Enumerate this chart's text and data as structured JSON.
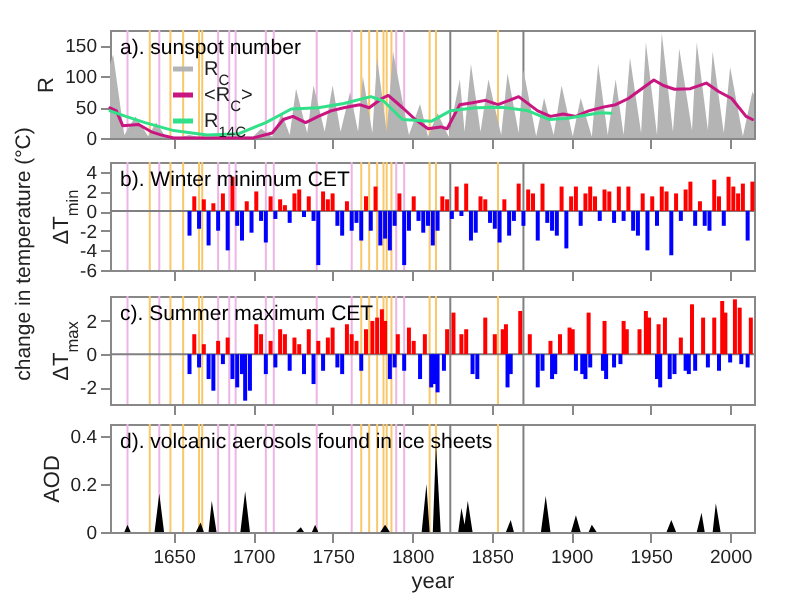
{
  "chart_data": [
    {
      "type": "area",
      "title": "a). sunspot number",
      "ylabel": "R",
      "xlim": [
        1610,
        2015
      ],
      "xticks": [
        1650,
        1700,
        1750,
        1800,
        1850,
        1900,
        1950,
        2000
      ],
      "ylim": [
        0,
        175
      ],
      "yticks": [
        0,
        50,
        100,
        150
      ],
      "tick_labels": "y",
      "legend": "left",
      "series": [
        {
          "name": "R$_{C}$",
          "type": "area",
          "color": "#b4b4b4",
          "x": [
            1610,
            1612,
            1619,
            1626,
            1634,
            1639,
            1645,
            1655,
            1660,
            1665,
            1675,
            1690,
            1700,
            1705,
            1712,
            1718,
            1723,
            1727,
            1734,
            1738,
            1745,
            1750,
            1755,
            1761,
            1766,
            1769,
            1775,
            1778,
            1784,
            1788,
            1798,
            1805,
            1810,
            1816,
            1823,
            1830,
            1833,
            1837,
            1843,
            1848,
            1856,
            1860,
            1867,
            1870,
            1878,
            1883,
            1889,
            1894,
            1901,
            1906,
            1913,
            1917,
            1923,
            1928,
            1933,
            1937,
            1944,
            1947,
            1954,
            1957,
            1964,
            1968,
            1976,
            1979,
            1986,
            1989,
            1996,
            2000,
            2008,
            2014,
            2015
          ],
          "values": [
            120,
            135,
            5,
            35,
            3,
            25,
            2,
            2,
            5,
            2,
            3,
            3,
            2,
            15,
            2,
            40,
            5,
            80,
            8,
            85,
            10,
            85,
            10,
            75,
            10,
            100,
            8,
            130,
            10,
            140,
            5,
            55,
            2,
            40,
            2,
            95,
            10,
            120,
            10,
            95,
            5,
            105,
            8,
            110,
            3,
            65,
            5,
            85,
            3,
            65,
            2,
            120,
            5,
            95,
            5,
            130,
            8,
            155,
            5,
            170,
            10,
            145,
            12,
            155,
            13,
            140,
            8,
            115,
            3,
            75,
            70
          ]
        },
        {
          "name": "<R$_{C}$>",
          "type": "line",
          "color": "#c8157f",
          "x": [
            1610,
            1614,
            1618,
            1628,
            1636,
            1642,
            1650,
            1700,
            1712,
            1719,
            1725,
            1733,
            1741,
            1749,
            1757,
            1767,
            1773,
            1781,
            1785,
            1794,
            1802,
            1810,
            1818,
            1822,
            1830,
            1838,
            1846,
            1854,
            1867,
            1879,
            1887,
            1895,
            1903,
            1911,
            1920,
            1928,
            1936,
            1944,
            1952,
            1958,
            1965,
            1975,
            1985,
            1993,
            2001,
            2010,
            2014
          ],
          "values": [
            49,
            44,
            20,
            22,
            10,
            5,
            0,
            0,
            8,
            30,
            35,
            25,
            35,
            44,
            49,
            54,
            49,
            64,
            69,
            49,
            30,
            15,
            18,
            15,
            54,
            57,
            61,
            54,
            67,
            44,
            35,
            39,
            35,
            44,
            50,
            54,
            64,
            79,
            94,
            85,
            79,
            80,
            89,
            75,
            64,
            35,
            30
          ]
        },
        {
          "name": "R$_{14C}$",
          "type": "line",
          "color": "#33e08a",
          "x": [
            1610,
            1620,
            1632,
            1650,
            1671,
            1691,
            1708,
            1724,
            1741,
            1757,
            1774,
            1782,
            1794,
            1812,
            1824,
            1840,
            1856,
            1873,
            1886,
            1898,
            1918,
            1925
          ],
          "values": [
            44,
            35,
            25,
            12,
            5,
            7,
            25,
            47,
            49,
            56,
            67,
            60,
            30,
            27,
            44,
            49,
            50,
            44,
            30,
            32,
            41,
            40
          ]
        }
      ],
      "ref_lines": [
        {
          "axis": "x",
          "value": 1621,
          "color": "#eeb4e6"
        },
        {
          "axis": "x",
          "value": 1635,
          "color": "#f8c86a"
        },
        {
          "axis": "x",
          "value": 1641,
          "color": "#eeb4e6"
        },
        {
          "axis": "x",
          "value": 1648,
          "color": "#f8c86a"
        },
        {
          "axis": "x",
          "value": 1656,
          "color": "#f8c86a"
        },
        {
          "axis": "x",
          "value": 1666,
          "color": "#f8c86a"
        },
        {
          "axis": "x",
          "value": 1668,
          "color": "#f8c86a"
        },
        {
          "axis": "x",
          "value": 1678,
          "color": "#eeb4e6"
        },
        {
          "axis": "x",
          "value": 1685,
          "color": "#eeb4e6"
        },
        {
          "axis": "x",
          "value": 1689,
          "color": "#eeb4e6"
        },
        {
          "axis": "x",
          "value": 1708,
          "color": "#eeb4e6"
        },
        {
          "axis": "x",
          "value": 1713,
          "color": "#eeb4e6"
        },
        {
          "axis": "x",
          "value": 1740,
          "color": "#eeb4e6"
        },
        {
          "axis": "x",
          "value": 1762,
          "color": "#eeb4e6"
        },
        {
          "axis": "x",
          "value": 1768,
          "color": "#f8c86a"
        },
        {
          "axis": "x",
          "value": 1773,
          "color": "#f8c86a"
        },
        {
          "axis": "x",
          "value": 1778,
          "color": "#f8c86a"
        },
        {
          "axis": "x",
          "value": 1782,
          "color": "#f8c86a"
        },
        {
          "axis": "x",
          "value": 1784,
          "color": "#f8c86a"
        },
        {
          "axis": "x",
          "value": 1787,
          "color": "#f8c86a"
        },
        {
          "axis": "x",
          "value": 1790,
          "color": "#eeb4e6"
        },
        {
          "axis": "x",
          "value": 1795,
          "color": "#eeb4e6"
        },
        {
          "axis": "x",
          "value": 1811,
          "color": "#f8c86a"
        },
        {
          "axis": "x",
          "value": 1815,
          "color": "#f8c86a"
        },
        {
          "axis": "x",
          "value": 1824,
          "color": "#808080"
        },
        {
          "axis": "x",
          "value": 1854,
          "color": "#f8c86a"
        },
        {
          "axis": "x",
          "value": 1870,
          "color": "#808080"
        }
      ]
    },
    {
      "type": "bar",
      "title": "b). Winter minimum CET",
      "ylabel": "ΔT$_{min}$",
      "annotations": [
        "change in temperature (°C)"
      ],
      "xlim": [
        1610,
        2015
      ],
      "xticks": [
        1650,
        1700,
        1750,
        1800,
        1850,
        1900,
        1950,
        2000
      ],
      "ylim": [
        -6,
        5
      ],
      "yticks": [
        -6,
        -4,
        -2,
        0,
        2,
        4
      ],
      "tick_labels": "y",
      "series": [
        {
          "color": "#ff0000",
          "x": [
            1663,
            1669,
            1675,
            1681,
            1687,
            1696,
            1702,
            1711,
            1717,
            1720,
            1726,
            1729,
            1735,
            1744,
            1747,
            1750,
            1759,
            1771,
            1777,
            1792,
            1801,
            1819,
            1822,
            1828,
            1834,
            1843,
            1846,
            1858,
            1867,
            1873,
            1876,
            1882,
            1894,
            1900,
            1903,
            1909,
            1912,
            1915,
            1921,
            1924,
            1930,
            1936,
            1945,
            1951,
            1957,
            1960,
            1966,
            1972,
            1975,
            1981,
            1990,
            1993,
            1999,
            2002,
            2005,
            2008,
            2014
          ],
          "values": [
            1.5,
            1.2,
            0.8,
            1.8,
            3.5,
            1.0,
            2.0,
            1.5,
            1.2,
            0.6,
            1.8,
            2.2,
            1.5,
            2.0,
            1.2,
            1.8,
            1.0,
            1.5,
            2.5,
            1.8,
            1.5,
            1.5,
            1.2,
            2.5,
            2.8,
            1.5,
            1.2,
            1.2,
            2.8,
            2.2,
            1.8,
            2.8,
            2.5,
            1.5,
            2.5,
            1.8,
            2.5,
            1.5,
            2.2,
            2.0,
            2.5,
            2.5,
            1.8,
            1.5,
            2.5,
            2.0,
            1.8,
            2.2,
            3.0,
            1.0,
            3.2,
            1.5,
            3.5,
            2.5,
            1.8,
            2.8,
            3.0
          ]
        },
        {
          "color": "#0000ff",
          "x": [
            1660,
            1666,
            1672,
            1678,
            1684,
            1690,
            1693,
            1699,
            1705,
            1708,
            1714,
            1723,
            1732,
            1738,
            1741,
            1753,
            1756,
            1762,
            1765,
            1768,
            1774,
            1780,
            1783,
            1786,
            1789,
            1795,
            1798,
            1804,
            1807,
            1810,
            1813,
            1816,
            1825,
            1831,
            1837,
            1840,
            1849,
            1852,
            1855,
            1861,
            1864,
            1870,
            1879,
            1885,
            1888,
            1891,
            1897,
            1906,
            1918,
            1927,
            1933,
            1939,
            1942,
            1948,
            1954,
            1963,
            1969,
            1978,
            1984,
            1987,
            1996,
            2011
          ],
          "values": [
            -2.5,
            -1.8,
            -3.5,
            -2.0,
            -4.0,
            -1.5,
            -3.0,
            -2.2,
            -1.0,
            -3.2,
            -0.8,
            -1.2,
            -0.6,
            -1.0,
            -5.5,
            -1.5,
            -2.5,
            -2.0,
            -1.2,
            -3.0,
            -2.0,
            -3.5,
            -2.8,
            -4.0,
            -1.5,
            -5.5,
            -2.0,
            -1.0,
            -2.2,
            -1.5,
            -3.5,
            -2.0,
            -0.8,
            -0.5,
            -3.0,
            -2.2,
            -1.2,
            -1.8,
            -3.2,
            -2.5,
            -1.0,
            -1.5,
            -3.0,
            -1.2,
            -2.0,
            -2.5,
            -3.8,
            -1.5,
            -1.0,
            -1.2,
            -1.0,
            -2.0,
            -2.5,
            -4.0,
            -1.5,
            -4.5,
            -1.0,
            -1.5,
            -1.5,
            -2.0,
            -1.5,
            -3.0
          ]
        }
      ],
      "ref_lines": [
        {
          "axis": "y",
          "value": 0,
          "color": "#808080"
        },
        {
          "axis": "x",
          "value": 1621,
          "color": "#eeb4e6"
        },
        {
          "axis": "x",
          "value": 1635,
          "color": "#f8c86a"
        },
        {
          "axis": "x",
          "value": 1641,
          "color": "#eeb4e6"
        },
        {
          "axis": "x",
          "value": 1648,
          "color": "#f8c86a"
        },
        {
          "axis": "x",
          "value": 1656,
          "color": "#f8c86a"
        },
        {
          "axis": "x",
          "value": 1666,
          "color": "#f8c86a"
        },
        {
          "axis": "x",
          "value": 1668,
          "color": "#f8c86a"
        },
        {
          "axis": "x",
          "value": 1678,
          "color": "#eeb4e6"
        },
        {
          "axis": "x",
          "value": 1685,
          "color": "#eeb4e6"
        },
        {
          "axis": "x",
          "value": 1689,
          "color": "#eeb4e6"
        },
        {
          "axis": "x",
          "value": 1708,
          "color": "#eeb4e6"
        },
        {
          "axis": "x",
          "value": 1713,
          "color": "#eeb4e6"
        },
        {
          "axis": "x",
          "value": 1740,
          "color": "#eeb4e6"
        },
        {
          "axis": "x",
          "value": 1762,
          "color": "#eeb4e6"
        },
        {
          "axis": "x",
          "value": 1768,
          "color": "#f8c86a"
        },
        {
          "axis": "x",
          "value": 1773,
          "color": "#f8c86a"
        },
        {
          "axis": "x",
          "value": 1778,
          "color": "#f8c86a"
        },
        {
          "axis": "x",
          "value": 1782,
          "color": "#f8c86a"
        },
        {
          "axis": "x",
          "value": 1784,
          "color": "#f8c86a"
        },
        {
          "axis": "x",
          "value": 1787,
          "color": "#f8c86a"
        },
        {
          "axis": "x",
          "value": 1790,
          "color": "#eeb4e6"
        },
        {
          "axis": "x",
          "value": 1795,
          "color": "#eeb4e6"
        },
        {
          "axis": "x",
          "value": 1811,
          "color": "#f8c86a"
        },
        {
          "axis": "x",
          "value": 1815,
          "color": "#f8c86a"
        },
        {
          "axis": "x",
          "value": 1824,
          "color": "#808080"
        },
        {
          "axis": "x",
          "value": 1854,
          "color": "#f8c86a"
        },
        {
          "axis": "x",
          "value": 1870,
          "color": "#808080"
        }
      ]
    },
    {
      "type": "bar",
      "title": "c). Summer maximum CET",
      "ylabel": "ΔT$_{max}$",
      "xlim": [
        1610,
        2015
      ],
      "xticks": [
        1650,
        1700,
        1750,
        1800,
        1850,
        1900,
        1950,
        2000
      ],
      "ylim": [
        -3,
        3.5
      ],
      "yticks": [
        -2,
        0,
        2
      ],
      "tick_labels": "y",
      "series": [
        {
          "color": "#ff0000",
          "x": [
            1663,
            1669,
            1678,
            1684,
            1702,
            1705,
            1711,
            1717,
            1720,
            1726,
            1729,
            1735,
            1741,
            1747,
            1750,
            1759,
            1762,
            1765,
            1771,
            1775,
            1778,
            1781,
            1783,
            1791,
            1798,
            1801,
            1808,
            1822,
            1826,
            1831,
            1834,
            1846,
            1852,
            1857,
            1859,
            1868,
            1874,
            1887,
            1893,
            1899,
            1901,
            1911,
            1921,
            1933,
            1935,
            1943,
            1947,
            1949,
            1955,
            1959,
            1969,
            1976,
            1983,
            1990,
            1995,
            1997,
            2003,
            2006,
            2013
          ],
          "values": [
            1.2,
            0.6,
            0.8,
            1.0,
            1.8,
            1.2,
            0.8,
            1.5,
            1.2,
            1.0,
            0.6,
            1.5,
            0.8,
            1.0,
            1.6,
            1.8,
            1.2,
            0.8,
            1.5,
            2.0,
            2.2,
            2.7,
            2.0,
            1.2,
            1.6,
            0.8,
            1.2,
            1.5,
            2.5,
            1.2,
            1.5,
            2.2,
            1.2,
            1.5,
            1.8,
            2.6,
            1.2,
            0.8,
            1.2,
            1.6,
            1.5,
            2.5,
            2.0,
            2.0,
            1.5,
            1.5,
            2.6,
            2.2,
            1.8,
            2.2,
            1.0,
            3.0,
            2.2,
            2.2,
            3.2,
            2.5,
            3.3,
            2.8,
            2.2
          ]
        },
        {
          "color": "#0000ff",
          "x": [
            1660,
            1666,
            1672,
            1675,
            1681,
            1687,
            1690,
            1693,
            1695,
            1698,
            1708,
            1714,
            1723,
            1732,
            1738,
            1744,
            1753,
            1756,
            1768,
            1786,
            1789,
            1795,
            1805,
            1812,
            1814,
            1816,
            1820,
            1838,
            1841,
            1860,
            1862,
            1879,
            1882,
            1888,
            1890,
            1903,
            1907,
            1909,
            1912,
            1920,
            1922,
            1927,
            1931,
            1954,
            1956,
            1962,
            1965,
            1972,
            1974,
            1978,
            1986,
            1993,
            2000,
            2007,
            2011
          ],
          "values": [
            -1.2,
            -0.8,
            -1.5,
            -2.2,
            -0.6,
            -1.5,
            -2.0,
            -1.2,
            -2.8,
            -2.2,
            -1.2,
            -0.8,
            -1.0,
            -1.2,
            -1.8,
            -1.0,
            -0.8,
            -1.2,
            -1.0,
            -1.5,
            -0.8,
            -1.0,
            -1.5,
            -2.0,
            -1.8,
            -2.3,
            -1.0,
            -1.2,
            -1.5,
            -2.0,
            -1.2,
            -2.0,
            -1.0,
            -1.5,
            -1.2,
            -1.0,
            -1.2,
            -1.5,
            -0.8,
            -1.0,
            -1.5,
            -0.8,
            -0.6,
            -1.5,
            -2.0,
            -1.5,
            -1.2,
            -1.0,
            -1.2,
            -1.0,
            -0.8,
            -1.0,
            -0.5,
            -0.6,
            -0.8
          ]
        }
      ],
      "ref_lines": [
        {
          "axis": "y",
          "value": 0,
          "color": "#808080"
        },
        {
          "axis": "x",
          "value": 1621,
          "color": "#eeb4e6"
        },
        {
          "axis": "x",
          "value": 1635,
          "color": "#f8c86a"
        },
        {
          "axis": "x",
          "value": 1641,
          "color": "#eeb4e6"
        },
        {
          "axis": "x",
          "value": 1648,
          "color": "#f8c86a"
        },
        {
          "axis": "x",
          "value": 1656,
          "color": "#f8c86a"
        },
        {
          "axis": "x",
          "value": 1666,
          "color": "#f8c86a"
        },
        {
          "axis": "x",
          "value": 1668,
          "color": "#f8c86a"
        },
        {
          "axis": "x",
          "value": 1678,
          "color": "#eeb4e6"
        },
        {
          "axis": "x",
          "value": 1685,
          "color": "#eeb4e6"
        },
        {
          "axis": "x",
          "value": 1689,
          "color": "#eeb4e6"
        },
        {
          "axis": "x",
          "value": 1708,
          "color": "#eeb4e6"
        },
        {
          "axis": "x",
          "value": 1713,
          "color": "#eeb4e6"
        },
        {
          "axis": "x",
          "value": 1740,
          "color": "#eeb4e6"
        },
        {
          "axis": "x",
          "value": 1762,
          "color": "#eeb4e6"
        },
        {
          "axis": "x",
          "value": 1768,
          "color": "#f8c86a"
        },
        {
          "axis": "x",
          "value": 1773,
          "color": "#f8c86a"
        },
        {
          "axis": "x",
          "value": 1778,
          "color": "#f8c86a"
        },
        {
          "axis": "x",
          "value": 1782,
          "color": "#f8c86a"
        },
        {
          "axis": "x",
          "value": 1784,
          "color": "#f8c86a"
        },
        {
          "axis": "x",
          "value": 1787,
          "color": "#f8c86a"
        },
        {
          "axis": "x",
          "value": 1790,
          "color": "#eeb4e6"
        },
        {
          "axis": "x",
          "value": 1795,
          "color": "#eeb4e6"
        },
        {
          "axis": "x",
          "value": 1811,
          "color": "#f8c86a"
        },
        {
          "axis": "x",
          "value": 1815,
          "color": "#f8c86a"
        },
        {
          "axis": "x",
          "value": 1824,
          "color": "#808080"
        },
        {
          "axis": "x",
          "value": 1854,
          "color": "#f8c86a"
        },
        {
          "axis": "x",
          "value": 1870,
          "color": "#808080"
        }
      ]
    },
    {
      "type": "area",
      "title": "d). volcanic aerosols found in ice sheets",
      "xlabel": "year",
      "ylabel": "AOD",
      "xlim": [
        1610,
        2015
      ],
      "xticks": [
        1650,
        1700,
        1750,
        1800,
        1850,
        1900,
        1950,
        2000
      ],
      "ylim": [
        0,
        0.45
      ],
      "yticks": [
        0,
        0.2,
        0.4
      ],
      "series": [
        {
          "color": "#000000",
          "x": [
            1610,
            1619,
            1621,
            1623,
            1638,
            1641,
            1644,
            1664,
            1667,
            1669,
            1672,
            1674,
            1677,
            1692,
            1695,
            1698,
            1727,
            1730,
            1732,
            1737,
            1739,
            1741,
            1780,
            1783,
            1786,
            1806,
            1809,
            1811,
            1813,
            1815,
            1818,
            1829,
            1831,
            1833,
            1835,
            1838,
            1859,
            1862,
            1864,
            1881,
            1884,
            1887,
            1900,
            1903,
            1906,
            1911,
            1913,
            1916,
            1960,
            1963,
            1966,
            1979,
            1982,
            1984,
            1989,
            1991,
            1994,
            2015
          ],
          "values": [
            0,
            0,
            0.03,
            0,
            0,
            0.16,
            0,
            0,
            0.04,
            0,
            0,
            0.13,
            0,
            0,
            0.17,
            0,
            0,
            0.02,
            0,
            0,
            0.03,
            0,
            0,
            0.03,
            0,
            0,
            0.2,
            0,
            0,
            0.37,
            0,
            0,
            0.1,
            0.03,
            0.13,
            0,
            0,
            0.05,
            0,
            0,
            0.15,
            0,
            0,
            0.07,
            0,
            0,
            0.03,
            0,
            0,
            0.05,
            0,
            0,
            0.08,
            0,
            0,
            0.12,
            0,
            0
          ]
        }
      ],
      "ref_lines": [
        {
          "axis": "x",
          "value": 1621,
          "color": "#eeb4e6"
        },
        {
          "axis": "x",
          "value": 1635,
          "color": "#f8c86a"
        },
        {
          "axis": "x",
          "value": 1641,
          "color": "#eeb4e6"
        },
        {
          "axis": "x",
          "value": 1648,
          "color": "#f8c86a"
        },
        {
          "axis": "x",
          "value": 1656,
          "color": "#f8c86a"
        },
        {
          "axis": "x",
          "value": 1666,
          "color": "#f8c86a"
        },
        {
          "axis": "x",
          "value": 1668,
          "color": "#f8c86a"
        },
        {
          "axis": "x",
          "value": 1678,
          "color": "#eeb4e6"
        },
        {
          "axis": "x",
          "value": 1685,
          "color": "#eeb4e6"
        },
        {
          "axis": "x",
          "value": 1689,
          "color": "#eeb4e6"
        },
        {
          "axis": "x",
          "value": 1708,
          "color": "#eeb4e6"
        },
        {
          "axis": "x",
          "value": 1713,
          "color": "#eeb4e6"
        },
        {
          "axis": "x",
          "value": 1740,
          "color": "#eeb4e6"
        },
        {
          "axis": "x",
          "value": 1762,
          "color": "#eeb4e6"
        },
        {
          "axis": "x",
          "value": 1768,
          "color": "#f8c86a"
        },
        {
          "axis": "x",
          "value": 1773,
          "color": "#f8c86a"
        },
        {
          "axis": "x",
          "value": 1778,
          "color": "#f8c86a"
        },
        {
          "axis": "x",
          "value": 1782,
          "color": "#f8c86a"
        },
        {
          "axis": "x",
          "value": 1784,
          "color": "#f8c86a"
        },
        {
          "axis": "x",
          "value": 1787,
          "color": "#f8c86a"
        },
        {
          "axis": "x",
          "value": 1790,
          "color": "#eeb4e6"
        },
        {
          "axis": "x",
          "value": 1795,
          "color": "#eeb4e6"
        },
        {
          "axis": "x",
          "value": 1811,
          "color": "#f8c86a"
        },
        {
          "axis": "x",
          "value": 1815,
          "color": "#f8c86a"
        },
        {
          "axis": "x",
          "value": 1824,
          "color": "#808080"
        },
        {
          "axis": "x",
          "value": 1854,
          "color": "#f8c86a"
        },
        {
          "axis": "x",
          "value": 1870,
          "color": "#808080"
        }
      ]
    }
  ]
}
